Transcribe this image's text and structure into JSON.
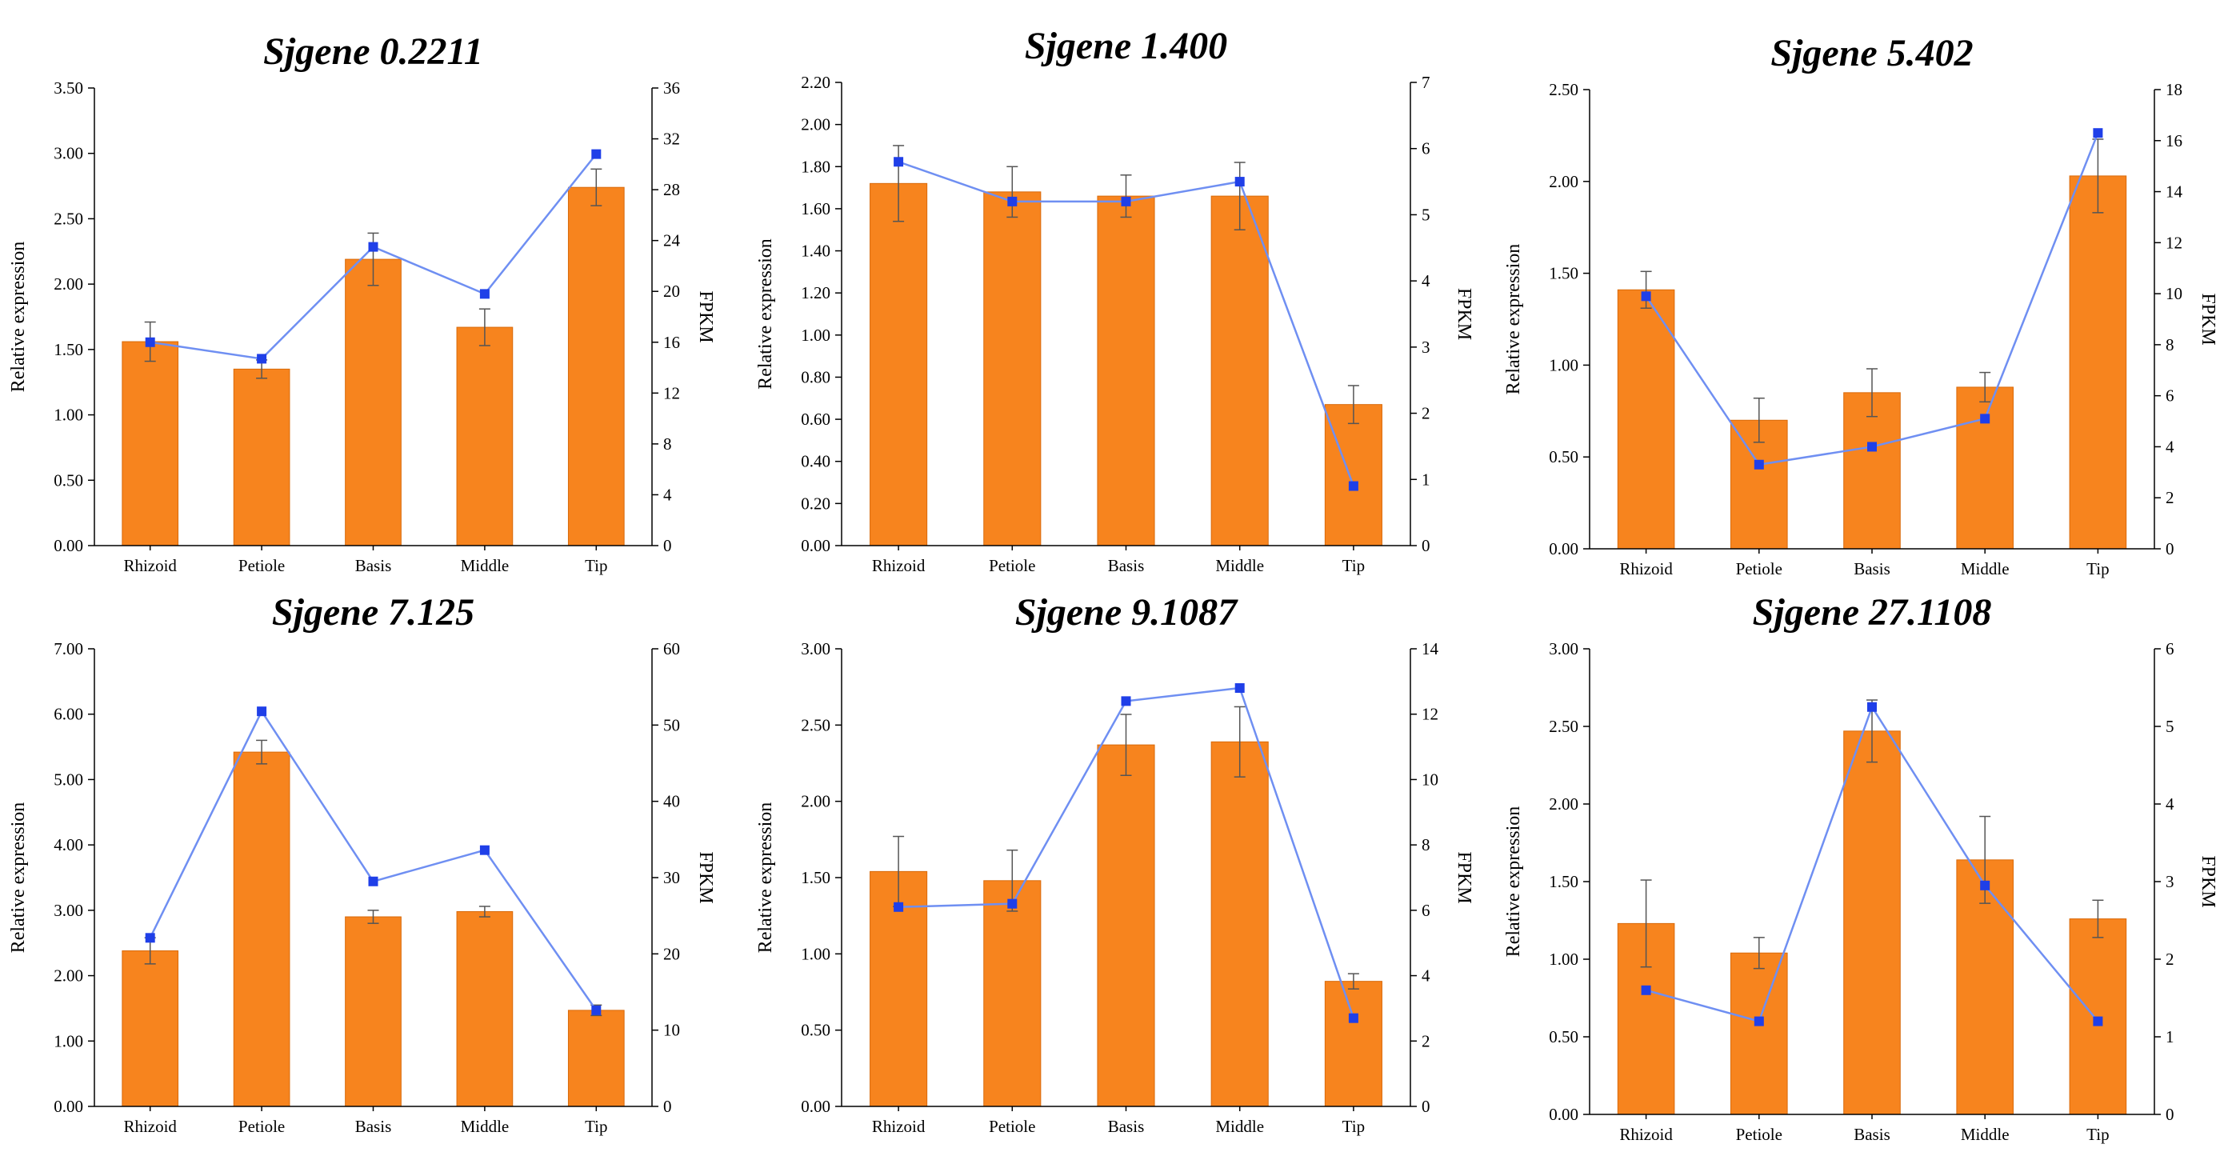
{
  "colors": {
    "bar": "#f7841e",
    "bar_edge": "#d96a0a",
    "line": "#6f8ff2",
    "marker": "#1f3fe8",
    "axis": "#000000"
  },
  "chart_data": [
    {
      "type": "bar+line",
      "title": "Sjgene 0.2211",
      "categories": [
        "Rhizoid",
        "Petiole",
        "Basis",
        "Middle",
        "Tip"
      ],
      "ylabel": "Relative expression",
      "y2label": "FPKM",
      "ylim": [
        0,
        3.5
      ],
      "yticks": [
        "0.00",
        "0.50",
        "1.00",
        "1.50",
        "2.00",
        "2.50",
        "3.00",
        "3.50"
      ],
      "y2lim": [
        0,
        36
      ],
      "y2ticks": [
        "0",
        "4",
        "8",
        "12",
        "16",
        "20",
        "24",
        "28",
        "32",
        "36"
      ],
      "bars": [
        1.56,
        1.35,
        2.19,
        1.67,
        2.74
      ],
      "errors": [
        0.15,
        0.07,
        0.2,
        0.14,
        0.14
      ],
      "fpkm": [
        16.0,
        14.7,
        23.5,
        19.8,
        30.8
      ]
    },
    {
      "type": "bar+line",
      "title": "Sjgene 1.400",
      "categories": [
        "Rhizoid",
        "Petiole",
        "Basis",
        "Middle",
        "Tip"
      ],
      "ylabel": "Relative expression",
      "y2label": "FPKM",
      "ylim": [
        0,
        2.2
      ],
      "yticks": [
        "0.00",
        "0.20",
        "0.40",
        "0.60",
        "0.80",
        "1.00",
        "1.20",
        "1.40",
        "1.60",
        "1.80",
        "2.00",
        "2.20"
      ],
      "y2lim": [
        0,
        7
      ],
      "y2ticks": [
        "0",
        "1",
        "2",
        "3",
        "4",
        "5",
        "6",
        "7"
      ],
      "bars": [
        1.72,
        1.68,
        1.66,
        1.66,
        0.67
      ],
      "errors": [
        0.18,
        0.12,
        0.1,
        0.16,
        0.09
      ],
      "fpkm": [
        5.8,
        5.2,
        5.2,
        5.5,
        0.9
      ]
    },
    {
      "type": "bar+line",
      "title": "Sjgene 5.402",
      "categories": [
        "Rhizoid",
        "Petiole",
        "Basis",
        "Middle",
        "Tip"
      ],
      "ylabel": "Relative expression",
      "y2label": "FPKM",
      "ylim": [
        0,
        2.5
      ],
      "yticks": [
        "0.00",
        "0.50",
        "1.00",
        "1.50",
        "2.00",
        "2.50"
      ],
      "y2lim": [
        0,
        18
      ],
      "y2ticks": [
        "0",
        "2",
        "4",
        "6",
        "8",
        "10",
        "12",
        "14",
        "16",
        "18"
      ],
      "bars": [
        1.41,
        0.7,
        0.85,
        0.88,
        2.03
      ],
      "errors": [
        0.1,
        0.12,
        0.13,
        0.08,
        0.2
      ],
      "fpkm": [
        9.9,
        3.3,
        4.0,
        5.1,
        16.3
      ]
    },
    {
      "type": "bar+line",
      "title": "Sjgene 7.125",
      "categories": [
        "Rhizoid",
        "Petiole",
        "Basis",
        "Middle",
        "Tip"
      ],
      "ylabel": "Relative expression",
      "y2label": "FPKM",
      "ylim": [
        0,
        7
      ],
      "yticks": [
        "0.00",
        "1.00",
        "2.00",
        "3.00",
        "4.00",
        "5.00",
        "6.00",
        "7.00"
      ],
      "y2lim": [
        0,
        60
      ],
      "y2ticks": [
        "0",
        "10",
        "20",
        "30",
        "40",
        "50",
        "60"
      ],
      "bars": [
        2.38,
        5.42,
        2.9,
        2.98,
        1.47
      ],
      "errors": [
        0.2,
        0.18,
        0.1,
        0.08,
        0.08
      ],
      "fpkm": [
        22.1,
        51.8,
        29.5,
        33.6,
        12.6
      ]
    },
    {
      "type": "bar+line",
      "title": "Sjgene 9.1087",
      "categories": [
        "Rhizoid",
        "Petiole",
        "Basis",
        "Middle",
        "Tip"
      ],
      "ylabel": "Relative expression",
      "y2label": "FPKM",
      "ylim": [
        0,
        3
      ],
      "yticks": [
        "0.00",
        "0.50",
        "1.00",
        "1.50",
        "2.00",
        "2.50",
        "3.00"
      ],
      "y2lim": [
        0,
        14
      ],
      "y2ticks": [
        "0",
        "2",
        "4",
        "6",
        "8",
        "10",
        "12",
        "14"
      ],
      "bars": [
        1.54,
        1.48,
        2.37,
        2.39,
        0.82
      ],
      "errors": [
        0.23,
        0.2,
        0.2,
        0.23,
        0.05
      ],
      "fpkm": [
        6.1,
        6.2,
        12.4,
        12.8,
        2.7
      ]
    },
    {
      "type": "bar+line",
      "title": "Sjgene 27.1108",
      "categories": [
        "Rhizoid",
        "Petiole",
        "Basis",
        "Middle",
        "Tip"
      ],
      "ylabel": "Relative expression",
      "y2label": "FPKM",
      "ylim": [
        0,
        3
      ],
      "yticks": [
        "0.00",
        "0.50",
        "1.00",
        "1.50",
        "2.00",
        "2.50",
        "3.00"
      ],
      "y2lim": [
        0,
        6
      ],
      "y2ticks": [
        "0",
        "1",
        "2",
        "3",
        "4",
        "5",
        "6"
      ],
      "bars": [
        1.23,
        1.04,
        2.47,
        1.64,
        1.26
      ],
      "errors": [
        0.28,
        0.1,
        0.2,
        0.28,
        0.12
      ],
      "fpkm": [
        1.6,
        1.2,
        5.25,
        2.95,
        1.2
      ]
    }
  ]
}
